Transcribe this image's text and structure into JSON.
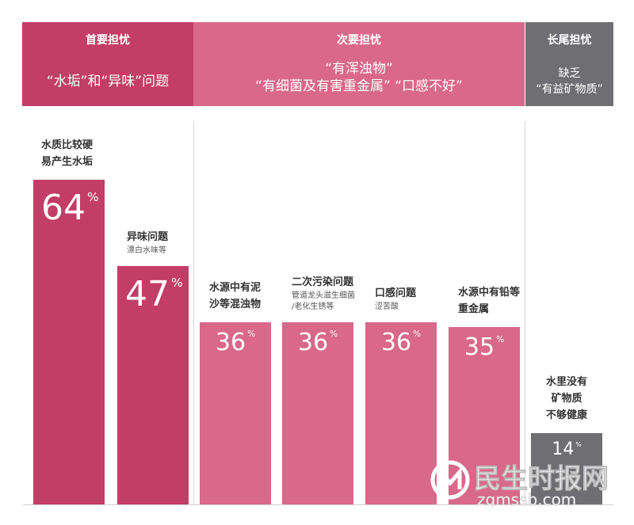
{
  "header": {
    "primary": {
      "title": "首要担忧",
      "text": "“水垢”和“异味”问题",
      "color": "#c23d67"
    },
    "secondary": {
      "title": "次要担忧",
      "line1": "“有浑浊物”",
      "line2": "“有细菌及有害重金属” “口感不好”",
      "color": "#d9688b"
    },
    "longtail": {
      "title": "长尾担忧",
      "line1": "缺乏",
      "line2": "“有益矿物质”",
      "color": "#6f6f73"
    }
  },
  "chart_data": {
    "type": "bar",
    "unit": "%",
    "ylim": [
      0,
      100
    ],
    "categories": [
      {
        "label_lines": [
          "水质比较硬",
          "易产生水垢"
        ],
        "sub_lines": [],
        "value": 64,
        "group": "primary"
      },
      {
        "label_lines": [
          "异味问题"
        ],
        "sub_lines": [
          "漂白水味等"
        ],
        "value": 47,
        "group": "primary"
      },
      {
        "label_lines": [
          "水源中有泥",
          "沙等混浊物"
        ],
        "sub_lines": [],
        "value": 36,
        "group": "secondary"
      },
      {
        "label_lines": [
          "二次污染问题"
        ],
        "sub_lines": [
          "管道龙头滋生细菌",
          "/老化生锈等"
        ],
        "value": 36,
        "group": "secondary"
      },
      {
        "label_lines": [
          "口感问题"
        ],
        "sub_lines": [
          "涩苦酸"
        ],
        "value": 36,
        "group": "secondary"
      },
      {
        "label_lines": [
          "水源中有铅等",
          "重金属"
        ],
        "sub_lines": [],
        "value": 35,
        "group": "secondary"
      },
      {
        "label_lines": [
          "水里没有",
          "矿物质",
          "不够健康"
        ],
        "sub_lines": [],
        "value": 14,
        "group": "longtail"
      }
    ],
    "colors": {
      "primary": "#c23d67",
      "secondary": "#d9688b",
      "longtail": "#6f6f73"
    }
  },
  "watermark": {
    "text": "民生时报网",
    "url": "zgmssb.com",
    "icon": "m-logo-icon",
    "color": "#ffffff"
  }
}
